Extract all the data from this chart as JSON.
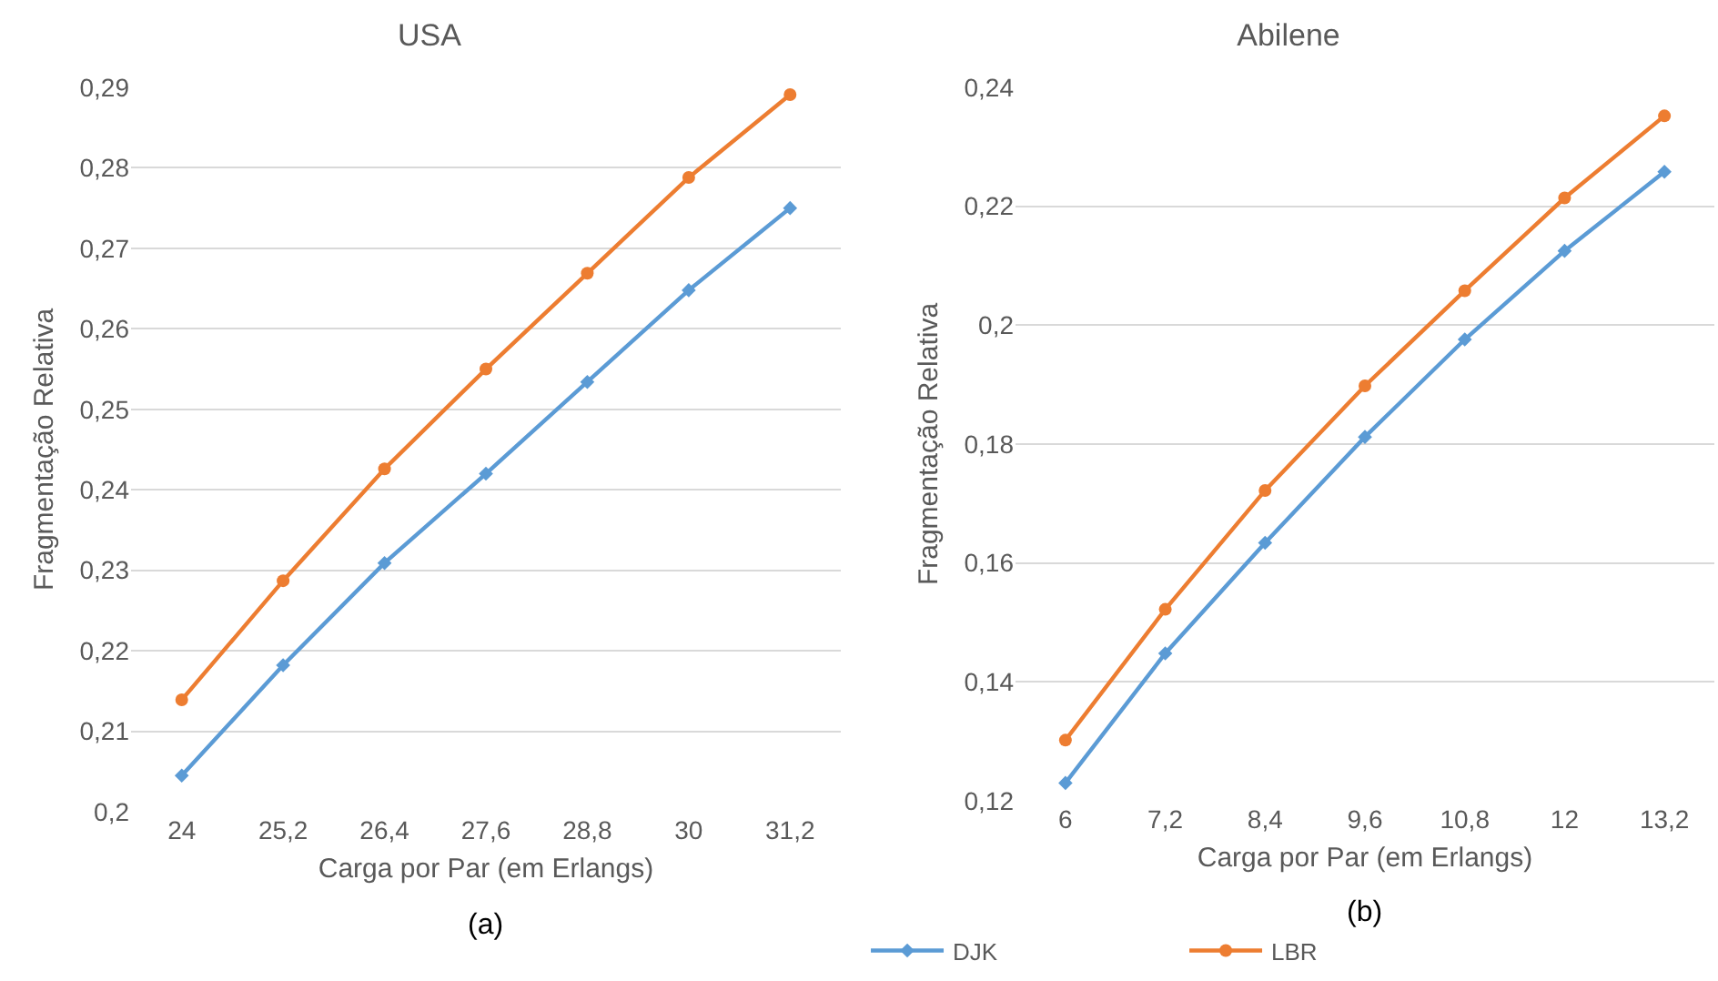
{
  "chart_data": [
    {
      "type": "line",
      "title": "USA",
      "xlabel": "Carga por Par (em Erlangs)",
      "ylabel": "Fragmentação Relativa",
      "annotations": [
        "(a)"
      ],
      "categories": [
        "24",
        "25,2",
        "26,4",
        "27,6",
        "28,8",
        "30",
        "31,2"
      ],
      "series": [
        {
          "color": "#5b9bd5",
          "marker": "diamond",
          "values": [
            0.2045,
            0.2182,
            0.2309,
            0.242,
            0.2534,
            0.2648,
            0.275
          ]
        },
        {
          "color": "#ed7d31",
          "marker": "circle",
          "values": [
            0.2139,
            0.2287,
            0.2426,
            0.255,
            0.2669,
            0.2788,
            0.2891
          ]
        }
      ],
      "ylim": [
        0.2,
        0.29
      ],
      "yticks": [
        {
          "value": 0.2,
          "label": "0,2"
        },
        {
          "value": 0.21,
          "label": "0,21"
        },
        {
          "value": 0.22,
          "label": "0,22"
        },
        {
          "value": 0.23,
          "label": "0,23"
        },
        {
          "value": 0.24,
          "label": "0,24"
        },
        {
          "value": 0.25,
          "label": "0,25"
        },
        {
          "value": 0.26,
          "label": "0,26"
        },
        {
          "value": 0.27,
          "label": "0,27"
        },
        {
          "value": 0.28,
          "label": "0,28"
        },
        {
          "value": 0.29,
          "label": "0,29"
        }
      ],
      "grid": "y",
      "legend": false,
      "line_style": "solid"
    },
    {
      "type": "line",
      "title": "Abilene",
      "xlabel": "Carga por Par (em Erlangs)",
      "ylabel": "Fragmentação Relativa",
      "annotations": [
        "(b)"
      ],
      "categories": [
        "6",
        "7,2",
        "8,4",
        "9,6",
        "10,8",
        "12",
        "13,2"
      ],
      "series": [
        {
          "name": "DJK",
          "color": "#5b9bd5",
          "marker": "diamond",
          "values": [
            0.123,
            0.1448,
            0.1634,
            0.1812,
            0.1976,
            0.2125,
            0.2258
          ]
        },
        {
          "name": "LBR",
          "color": "#ed7d31",
          "marker": "circle",
          "values": [
            0.1302,
            0.1522,
            0.1722,
            0.1898,
            0.2058,
            0.2214,
            0.2352
          ]
        }
      ],
      "ylim": [
        0.12,
        0.24
      ],
      "yticks": [
        {
          "value": 0.12,
          "label": "0,12"
        },
        {
          "value": 0.14,
          "label": "0,14"
        },
        {
          "value": 0.16,
          "label": "0,16"
        },
        {
          "value": 0.18,
          "label": "0,18"
        },
        {
          "value": 0.2,
          "label": "0,2"
        },
        {
          "value": 0.22,
          "label": "0,22"
        },
        {
          "value": 0.24,
          "label": "0,24"
        }
      ],
      "grid": "y",
      "legend": "bottom left",
      "line_style": "solid"
    }
  ]
}
